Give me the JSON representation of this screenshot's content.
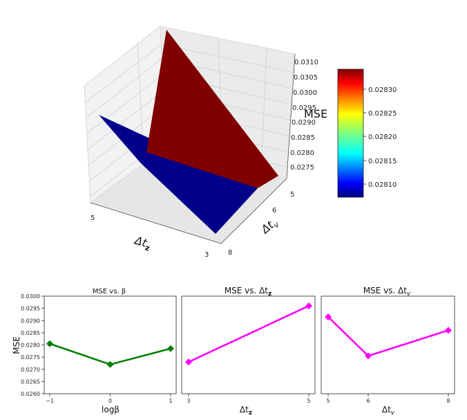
{
  "chart_data": [
    {
      "type": "surface3d",
      "title": "",
      "zlabel": "MSE",
      "xlabel": "Δt_z",
      "ylabel": "Δt_v",
      "x_ticks": [
        "5",
        "3"
      ],
      "y_ticks": [
        "5",
        "6",
        "8"
      ],
      "z_ticks": [
        "0.0275",
        "0.0280",
        "0.0285",
        "0.0290",
        "0.0295",
        "0.0300",
        "0.0305",
        "0.0310"
      ],
      "surfaces": [
        {
          "color": "#800000",
          "value": 0.0283
        },
        {
          "color": "#000080",
          "value": 0.0281
        }
      ],
      "colorbar": {
        "ticks": [
          "0.02830",
          "0.02825",
          "0.02820",
          "0.02815",
          "0.02810"
        ],
        "range": [
          0.02807,
          0.02834
        ]
      }
    },
    {
      "type": "line",
      "title": "MSE vs. β",
      "xlabel": "logβ",
      "ylabel": "MSE",
      "x": [
        -1,
        0,
        1
      ],
      "x_ticks": [
        "−1",
        "0",
        "1"
      ],
      "values": [
        0.02805,
        0.0272,
        0.02785
      ],
      "ylim": [
        0.026,
        0.03
      ],
      "y_ticks": [
        "0.0300",
        "0.0295",
        "0.0290",
        "0.0285",
        "0.0280",
        "0.0275",
        "0.0270",
        "0.0265",
        "0.0260"
      ],
      "color": "#008000",
      "marker": "diamond"
    },
    {
      "type": "line",
      "title": "MSE vs. Δt_z",
      "xlabel": "Δt_z",
      "x": [
        3,
        5
      ],
      "x_ticks": [
        "3",
        "5"
      ],
      "values": [
        0.0273,
        0.0296
      ],
      "ylim": [
        0.026,
        0.03
      ],
      "color": "#ff00ff",
      "marker": "diamond"
    },
    {
      "type": "line",
      "title": "MSE vs. Δt_v",
      "xlabel": "Δt_v",
      "x": [
        5,
        6,
        8
      ],
      "x_ticks": [
        "5",
        "6",
        "8"
      ],
      "values": [
        0.02915,
        0.02755,
        0.0286
      ],
      "ylim": [
        0.026,
        0.03
      ],
      "color": "#ff00ff",
      "marker": "diamond"
    }
  ]
}
